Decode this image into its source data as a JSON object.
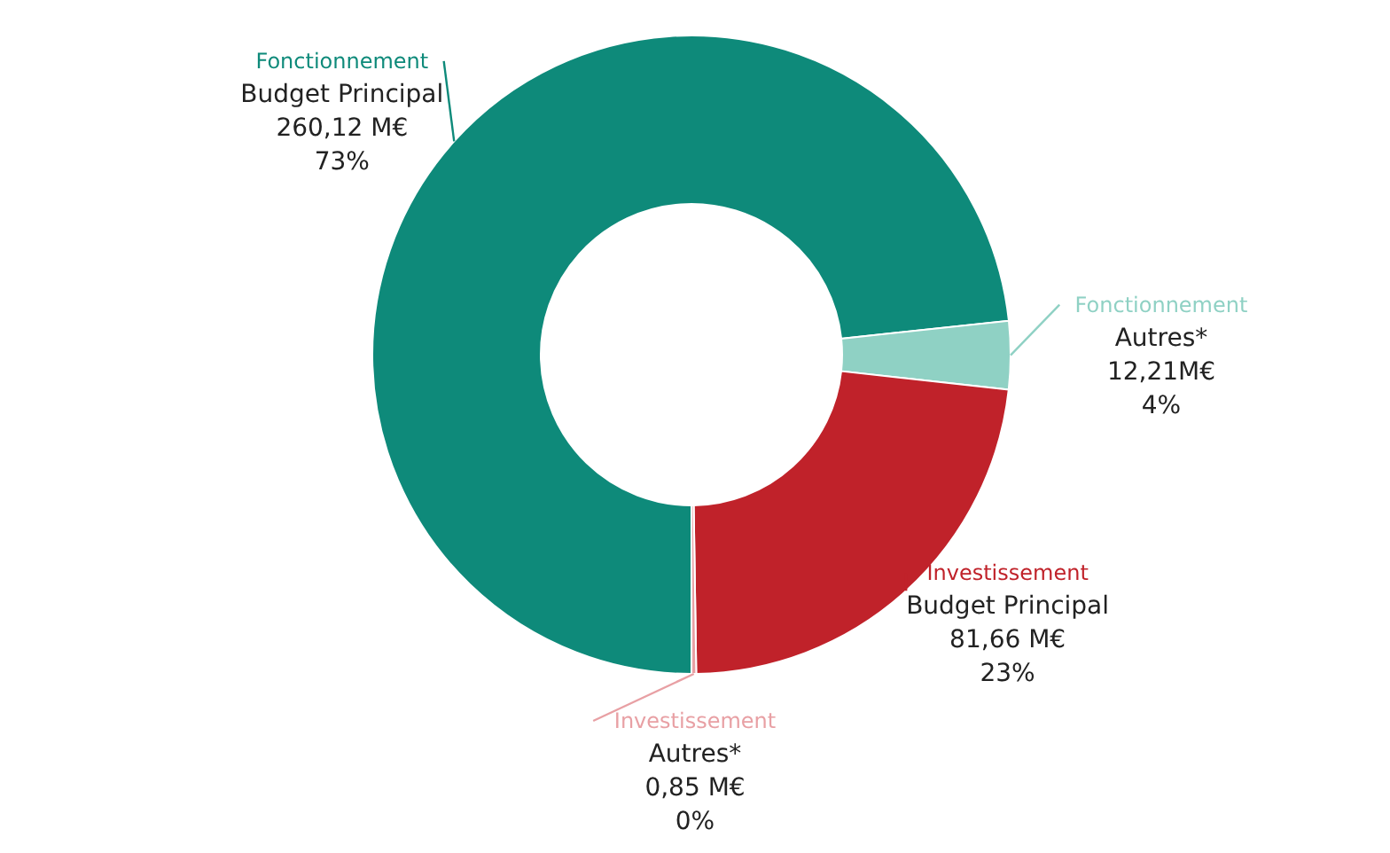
{
  "chart_data": {
    "type": "donut",
    "categories": [
      "Fonctionnement Budget Principal",
      "Fonctionnement Autres*",
      "Investissement Budget Principal",
      "Investissement Autres*"
    ],
    "values": [
      260.12,
      12.21,
      81.66,
      0.85
    ],
    "colors": [
      "#0e8a7a",
      "#8fd1c4",
      "#c0222a",
      "#e8a0a4"
    ],
    "value_labels": [
      "260,12 M€",
      "12,21M€",
      "81,66 M€",
      "0,85 M€"
    ],
    "annotations": [
      "73%",
      "4%",
      "23%",
      "0%"
    ],
    "legend": false
  }
}
